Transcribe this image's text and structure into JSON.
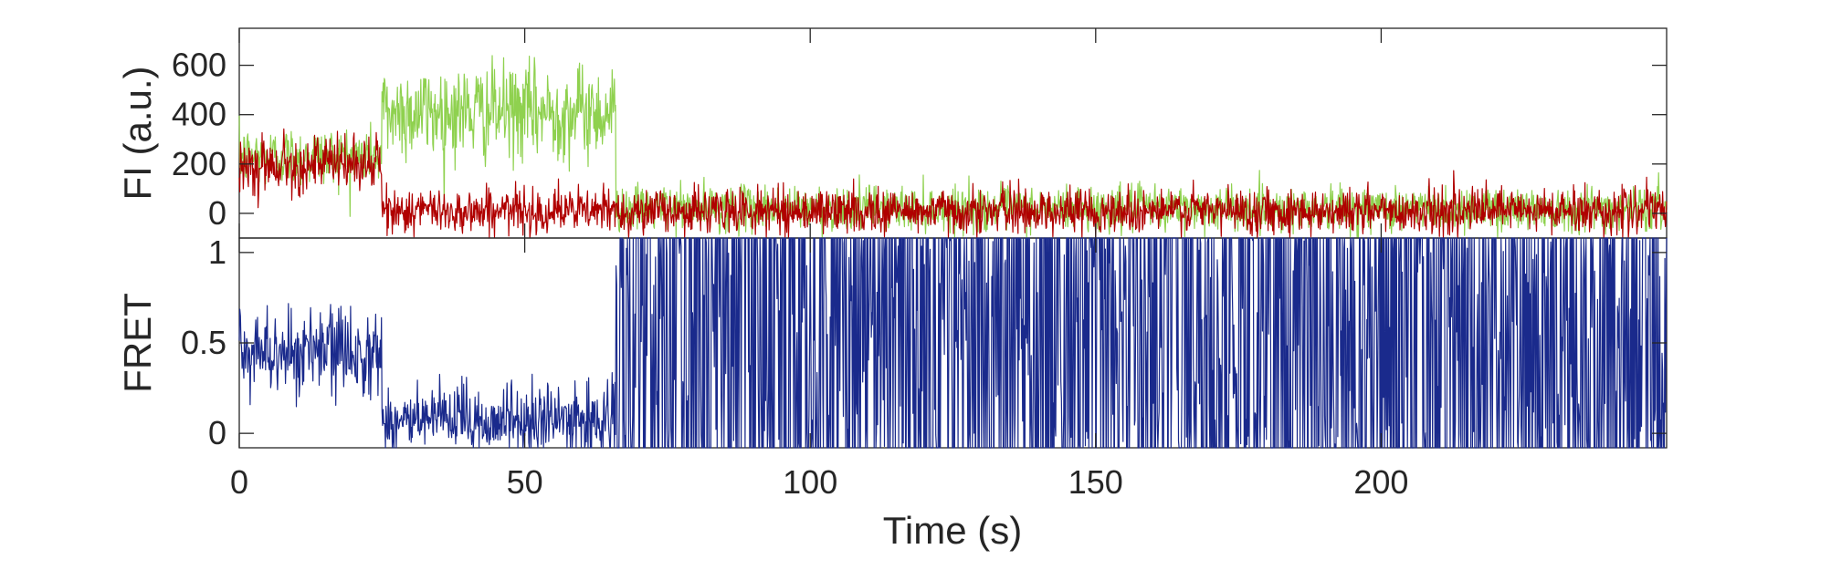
{
  "chart_data": [
    {
      "type": "line",
      "panel": "top",
      "ylabel": "FI (a.u.)",
      "xlim": [
        0,
        250
      ],
      "ylim": [
        -100,
        750
      ],
      "yticks": [
        0,
        200,
        400,
        600
      ],
      "grid": false,
      "series": [
        {
          "color": "#8fd14f",
          "segments": [
            {
              "x": [
                0,
                25
              ],
              "mean": 230,
              "noise": 60
            },
            {
              "x": [
                25,
                66
              ],
              "mean": 410,
              "noise": 95
            },
            {
              "x": [
                66,
                250
              ],
              "mean": 20,
              "noise": 45
            }
          ]
        },
        {
          "color": "#b00000",
          "segments": [
            {
              "x": [
                0,
                25
              ],
              "mean": 200,
              "noise": 55
            },
            {
              "x": [
                25,
                250
              ],
              "mean": 10,
              "noise": 45
            }
          ]
        }
      ]
    },
    {
      "type": "line",
      "panel": "bottom",
      "ylabel": "FRET",
      "xlabel": "Time (s)",
      "xlim": [
        0,
        250
      ],
      "ylim": [
        -0.08,
        1.08
      ],
      "yticks": [
        0,
        0.5,
        1
      ],
      "xticks": [
        0,
        50,
        100,
        150,
        200
      ],
      "grid": false,
      "series": [
        {
          "color": "#1a2a8c",
          "segments": [
            {
              "x": [
                0,
                25
              ],
              "mean": 0.45,
              "noise": 0.12,
              "behavior": "noisy"
            },
            {
              "x": [
                25,
                66
              ],
              "mean": 0.07,
              "noise": 0.1,
              "behavior": "noisy"
            },
            {
              "x": [
                66,
                250
              ],
              "behavior": "erratic"
            }
          ]
        }
      ]
    }
  ]
}
